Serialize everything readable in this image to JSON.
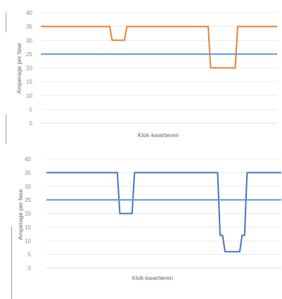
{
  "chart_data": [
    {
      "type": "line",
      "title": "",
      "xlabel": "Klok-kwartieren",
      "ylabel": "Amperage per fase",
      "ylim": [
        0,
        40
      ],
      "yticks": [
        0,
        5,
        10,
        15,
        20,
        25,
        30,
        35,
        40
      ],
      "grid": true,
      "legend": "none",
      "x": [
        0,
        28,
        29,
        34,
        35,
        68,
        69,
        79,
        80,
        96
      ],
      "series": [
        {
          "color": "#ED7D31",
          "x": [
            0,
            28,
            29,
            34,
            35,
            68,
            69,
            79,
            80,
            96
          ],
          "values": [
            35,
            35,
            30,
            30,
            35,
            35,
            20,
            20,
            35,
            35
          ]
        },
        {
          "color": "#5B9BD5",
          "x": [
            0,
            96
          ],
          "values": [
            25,
            25
          ]
        }
      ]
    },
    {
      "type": "line",
      "title": "",
      "xlabel": "Klok-kwartieren",
      "ylabel": "Amperage per fase",
      "ylim": [
        0,
        40
      ],
      "yticks": [
        0,
        5,
        10,
        15,
        20,
        25,
        30,
        35,
        40
      ],
      "grid": true,
      "legend": "none",
      "series": [
        {
          "color": "#4472C4",
          "x": [
            0,
            29,
            30,
            35,
            36,
            70,
            71,
            72,
            73,
            79,
            80,
            81,
            82,
            96
          ],
          "values": [
            35,
            35,
            20,
            20,
            35,
            35,
            12,
            12,
            6,
            6,
            12,
            12,
            35,
            35
          ]
        },
        {
          "color": "#5B9BD5",
          "x": [
            0,
            96
          ],
          "values": [
            25,
            25
          ]
        }
      ]
    }
  ]
}
